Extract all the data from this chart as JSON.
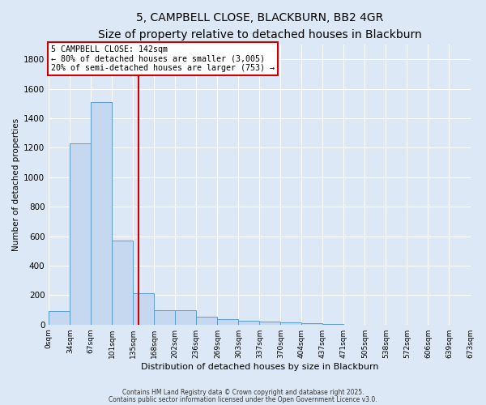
{
  "title": "5, CAMPBELL CLOSE, BLACKBURN, BB2 4GR",
  "subtitle": "Size of property relative to detached houses in Blackburn",
  "xlabel": "Distribution of detached houses by size in Blackburn",
  "ylabel": "Number of detached properties",
  "bin_labels": [
    "0sqm",
    "34sqm",
    "67sqm",
    "101sqm",
    "135sqm",
    "168sqm",
    "202sqm",
    "236sqm",
    "269sqm",
    "303sqm",
    "337sqm",
    "370sqm",
    "404sqm",
    "437sqm",
    "471sqm",
    "505sqm",
    "538sqm",
    "572sqm",
    "606sqm",
    "639sqm",
    "673sqm"
  ],
  "bar_heights": [
    90,
    1230,
    1510,
    570,
    215,
    100,
    100,
    55,
    35,
    25,
    20,
    15,
    10,
    5,
    0,
    0,
    0,
    0,
    0,
    0
  ],
  "bar_color": "#c5d8f0",
  "bar_edge_color": "#5b9bd5",
  "vline_index": 4.24,
  "vline_color": "#cc0000",
  "ylim": [
    0,
    1900
  ],
  "yticks": [
    0,
    200,
    400,
    600,
    800,
    1000,
    1200,
    1400,
    1600,
    1800
  ],
  "annotation_title": "5 CAMPBELL CLOSE: 142sqm",
  "annotation_line1": "← 80% of detached houses are smaller (3,005)",
  "annotation_line2": "20% of semi-detached houses are larger (753) →",
  "annotation_box_color": "#ffffff",
  "annotation_box_edge": "#cc0000",
  "footer1": "Contains HM Land Registry data © Crown copyright and database right 2025.",
  "footer2": "Contains public sector information licensed under the Open Government Licence v3.0.",
  "bg_color": "#dce8f5",
  "grid_color": "#ffffff",
  "title_fontsize": 10,
  "subtitle_fontsize": 9
}
